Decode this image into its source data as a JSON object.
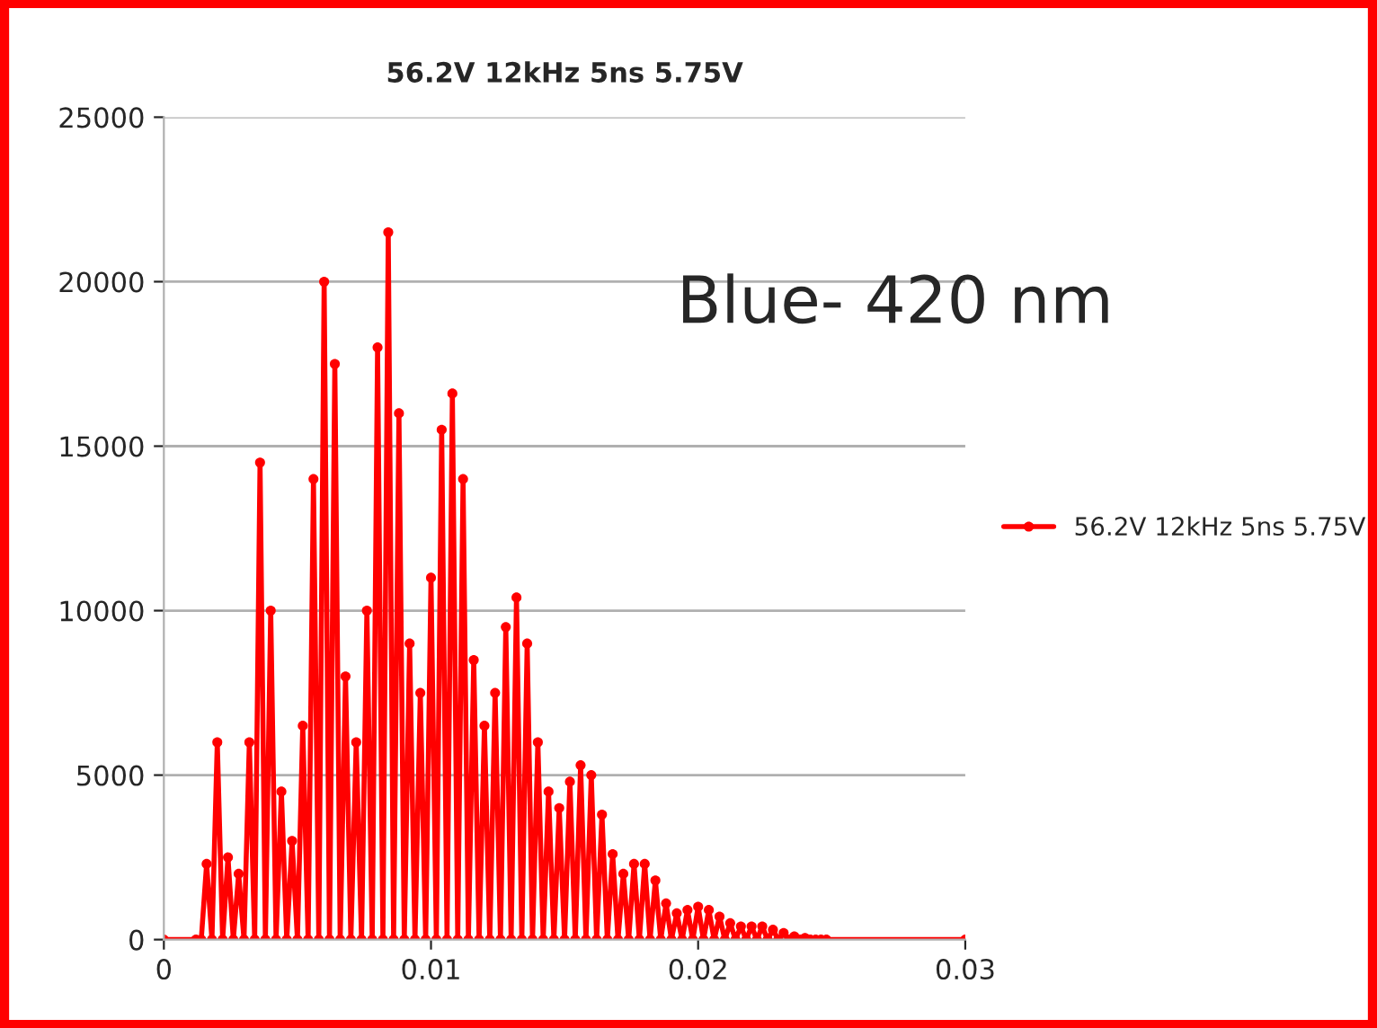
{
  "chart_data": {
    "type": "line",
    "title": "56.2V 12kHz 5ns 5.75V",
    "annotations": [
      "Blue- 420 nm"
    ],
    "x": [
      0,
      0.0012,
      0.0014,
      0.0016,
      0.0018,
      0.002,
      0.0022,
      0.0024,
      0.0026,
      0.0028,
      0.003,
      0.0032,
      0.0034,
      0.0036,
      0.0038,
      0.004,
      0.0042,
      0.0044,
      0.0046,
      0.0048,
      0.005,
      0.0052,
      0.0054,
      0.0056,
      0.0058,
      0.006,
      0.0062,
      0.0064,
      0.0066,
      0.0068,
      0.007,
      0.0072,
      0.0074,
      0.0076,
      0.0078,
      0.008,
      0.0082,
      0.0084,
      0.0086,
      0.0088,
      0.009,
      0.0092,
      0.0094,
      0.0096,
      0.0098,
      0.01,
      0.0102,
      0.0104,
      0.0106,
      0.0108,
      0.011,
      0.0112,
      0.0114,
      0.0116,
      0.0118,
      0.012,
      0.0122,
      0.0124,
      0.0126,
      0.0128,
      0.013,
      0.0132,
      0.0134,
      0.0136,
      0.0138,
      0.014,
      0.0142,
      0.0144,
      0.0146,
      0.0148,
      0.015,
      0.0152,
      0.0154,
      0.0156,
      0.0158,
      0.016,
      0.0162,
      0.0164,
      0.0166,
      0.0168,
      0.017,
      0.0172,
      0.0174,
      0.0176,
      0.0178,
      0.018,
      0.0182,
      0.0184,
      0.0186,
      0.0188,
      0.019,
      0.0192,
      0.0194,
      0.0196,
      0.0198,
      0.02,
      0.0202,
      0.0204,
      0.0206,
      0.0208,
      0.021,
      0.0212,
      0.0214,
      0.0216,
      0.0218,
      0.022,
      0.0222,
      0.0224,
      0.0226,
      0.0228,
      0.023,
      0.0232,
      0.0234,
      0.0236,
      0.0238,
      0.024,
      0.0242,
      0.0244,
      0.0246,
      0.0248,
      0.03
    ],
    "series": [
      {
        "name": "56.2V 12kHz 5ns 5.75V",
        "color": "#ff0000",
        "values": [
          0,
          0,
          0,
          2300,
          0,
          6000,
          0,
          2500,
          0,
          2000,
          0,
          6000,
          0,
          14500,
          0,
          10000,
          0,
          4500,
          0,
          3000,
          0,
          6500,
          0,
          14000,
          0,
          20000,
          0,
          17500,
          0,
          8000,
          0,
          6000,
          0,
          10000,
          0,
          18000,
          0,
          21500,
          0,
          16000,
          0,
          9000,
          0,
          7500,
          0,
          11000,
          0,
          15500,
          0,
          16600,
          0,
          14000,
          0,
          8500,
          0,
          6500,
          0,
          7500,
          0,
          9500,
          0,
          10400,
          0,
          9000,
          0,
          6000,
          0,
          4500,
          0,
          4000,
          0,
          4800,
          0,
          5300,
          0,
          5000,
          0,
          3800,
          0,
          2600,
          0,
          2000,
          0,
          2300,
          0,
          2300,
          0,
          1800,
          0,
          1100,
          0,
          800,
          0,
          900,
          0,
          1000,
          0,
          900,
          0,
          700,
          0,
          500,
          0,
          400,
          0,
          400,
          0,
          400,
          0,
          300,
          0,
          200,
          0,
          100,
          0,
          50,
          0,
          0,
          0,
          0,
          0
        ]
      }
    ],
    "xlim": [
      0,
      0.03
    ],
    "xticks": [
      0,
      0.01,
      0.02,
      0.03
    ],
    "ylim": [
      0,
      25000
    ],
    "yticks": [
      0,
      5000,
      10000,
      15000,
      20000,
      25000
    ],
    "grid": "y",
    "legend": "right",
    "marker": "circle",
    "line_style": "solid"
  }
}
